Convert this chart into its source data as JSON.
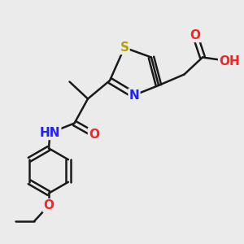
{
  "bg_color": "#ebebeb",
  "bond_color": "#1a1a1a",
  "bond_width": 1.8,
  "S_color": "#b8a000",
  "N_color": "#2020ff",
  "O_color": "#ff2020",
  "H_color": "#608080",
  "font_size_atom": 11,
  "xlim": [
    0,
    10
  ],
  "ylim": [
    0,
    10
  ]
}
